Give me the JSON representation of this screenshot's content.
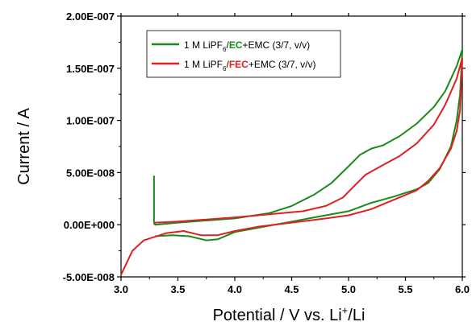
{
  "chart_data": {
    "type": "line",
    "xlabel_parts": {
      "base": "Potential / V vs. Li",
      "sup": "+",
      "tail": "/Li"
    },
    "ylabel": "Current / A",
    "xlim": [
      3.0,
      6.0
    ],
    "ylim": [
      -5e-08,
      2e-07
    ],
    "x_ticks": [
      3.0,
      3.5,
      4.0,
      4.5,
      5.0,
      5.5,
      6.0
    ],
    "x_tick_labels": [
      "3.0",
      "3.5",
      "4.0",
      "4.5",
      "5.0",
      "5.5",
      "6.0"
    ],
    "y_ticks": [
      -5e-08,
      0,
      5e-08,
      1e-07,
      1.5e-07,
      2e-07
    ],
    "y_tick_labels": [
      "-5.00E-008",
      "0.00E+000",
      "5.00E-008",
      "1.00E-007",
      "1.50E-007",
      "2.00E-007"
    ],
    "legend_position": "top-left",
    "series": [
      {
        "name_parts": {
          "pre": "1 M LiPF",
          "sub": "6",
          "slash": "/",
          "hl": "EC",
          "post": "+EMC (3/7, v/v)"
        },
        "color": "#1a8a1a",
        "highlight_color": "#1a8a1a",
        "upper": [
          [
            3.29,
            4.7e-08
          ],
          [
            3.29,
            2e-09
          ],
          [
            3.3,
            0.0
          ],
          [
            3.5,
            2e-09
          ],
          [
            4.0,
            6e-09
          ],
          [
            4.3,
            1.1e-08
          ],
          [
            4.5,
            1.8e-08
          ],
          [
            4.7,
            2.9e-08
          ],
          [
            4.85,
            4e-08
          ],
          [
            5.0,
            5.6e-08
          ],
          [
            5.1,
            6.7e-08
          ],
          [
            5.2,
            7.3e-08
          ],
          [
            5.3,
            7.6e-08
          ],
          [
            5.45,
            8.5e-08
          ],
          [
            5.6,
            9.7e-08
          ],
          [
            5.75,
            1.13e-07
          ],
          [
            5.85,
            1.28e-07
          ],
          [
            5.95,
            1.52e-07
          ],
          [
            6.0,
            1.68e-07
          ]
        ],
        "lower": [
          [
            6.0,
            1.68e-07
          ],
          [
            5.98,
            1.25e-07
          ],
          [
            5.95,
            1e-07
          ],
          [
            5.9,
            7.5e-08
          ],
          [
            5.8,
            5.3e-08
          ],
          [
            5.7,
            4e-08
          ],
          [
            5.6,
            3.4e-08
          ],
          [
            5.4,
            2.7e-08
          ],
          [
            5.2,
            2.1e-08
          ],
          [
            5.0,
            1.3e-08
          ],
          [
            4.8,
            9e-09
          ],
          [
            4.5,
            3e-09
          ],
          [
            4.2,
            -3e-09
          ],
          [
            4.0,
            -7e-09
          ],
          [
            3.85,
            -1.4e-08
          ],
          [
            3.75,
            -1.5e-08
          ],
          [
            3.6,
            -1.1e-08
          ],
          [
            3.45,
            -1e-08
          ],
          [
            3.3,
            -1.1e-08
          ]
        ]
      },
      {
        "name_parts": {
          "pre": "1 M LiPF",
          "sub": "6",
          "slash": "/",
          "hl": "FEC",
          "post": "+EMC (3/7, v/v)"
        },
        "color": "#e02020",
        "highlight_color": "#e02020",
        "upper": [
          [
            3.29,
            0.0
          ],
          [
            3.3,
            2e-09
          ],
          [
            3.5,
            3e-09
          ],
          [
            4.0,
            7e-09
          ],
          [
            4.3,
            1e-08
          ],
          [
            4.6,
            1.3e-08
          ],
          [
            4.8,
            1.8e-08
          ],
          [
            4.95,
            2.6e-08
          ],
          [
            5.05,
            3.7e-08
          ],
          [
            5.15,
            4.8e-08
          ],
          [
            5.3,
            5.7e-08
          ],
          [
            5.45,
            6.6e-08
          ],
          [
            5.6,
            7.8e-08
          ],
          [
            5.75,
            9.6e-08
          ],
          [
            5.85,
            1.15e-07
          ],
          [
            5.95,
            1.4e-07
          ],
          [
            6.0,
            1.6e-07
          ]
        ],
        "lower": [
          [
            6.0,
            1.6e-07
          ],
          [
            5.98,
            1.1e-07
          ],
          [
            5.95,
            9e-08
          ],
          [
            5.9,
            7.3e-08
          ],
          [
            5.8,
            5.4e-08
          ],
          [
            5.7,
            4.2e-08
          ],
          [
            5.6,
            3.3e-08
          ],
          [
            5.4,
            2.4e-08
          ],
          [
            5.2,
            1.5e-08
          ],
          [
            5.0,
            9e-09
          ],
          [
            4.8,
            6e-09
          ],
          [
            4.5,
            2e-09
          ],
          [
            4.2,
            -2e-09
          ],
          [
            4.0,
            -6e-09
          ],
          [
            3.85,
            -1e-08
          ],
          [
            3.7,
            -1e-08
          ],
          [
            3.55,
            -6e-09
          ],
          [
            3.4,
            -8e-09
          ],
          [
            3.2,
            -1.5e-08
          ],
          [
            3.1,
            -2.5e-08
          ],
          [
            3.0,
            -4.8e-08
          ]
        ]
      }
    ]
  }
}
